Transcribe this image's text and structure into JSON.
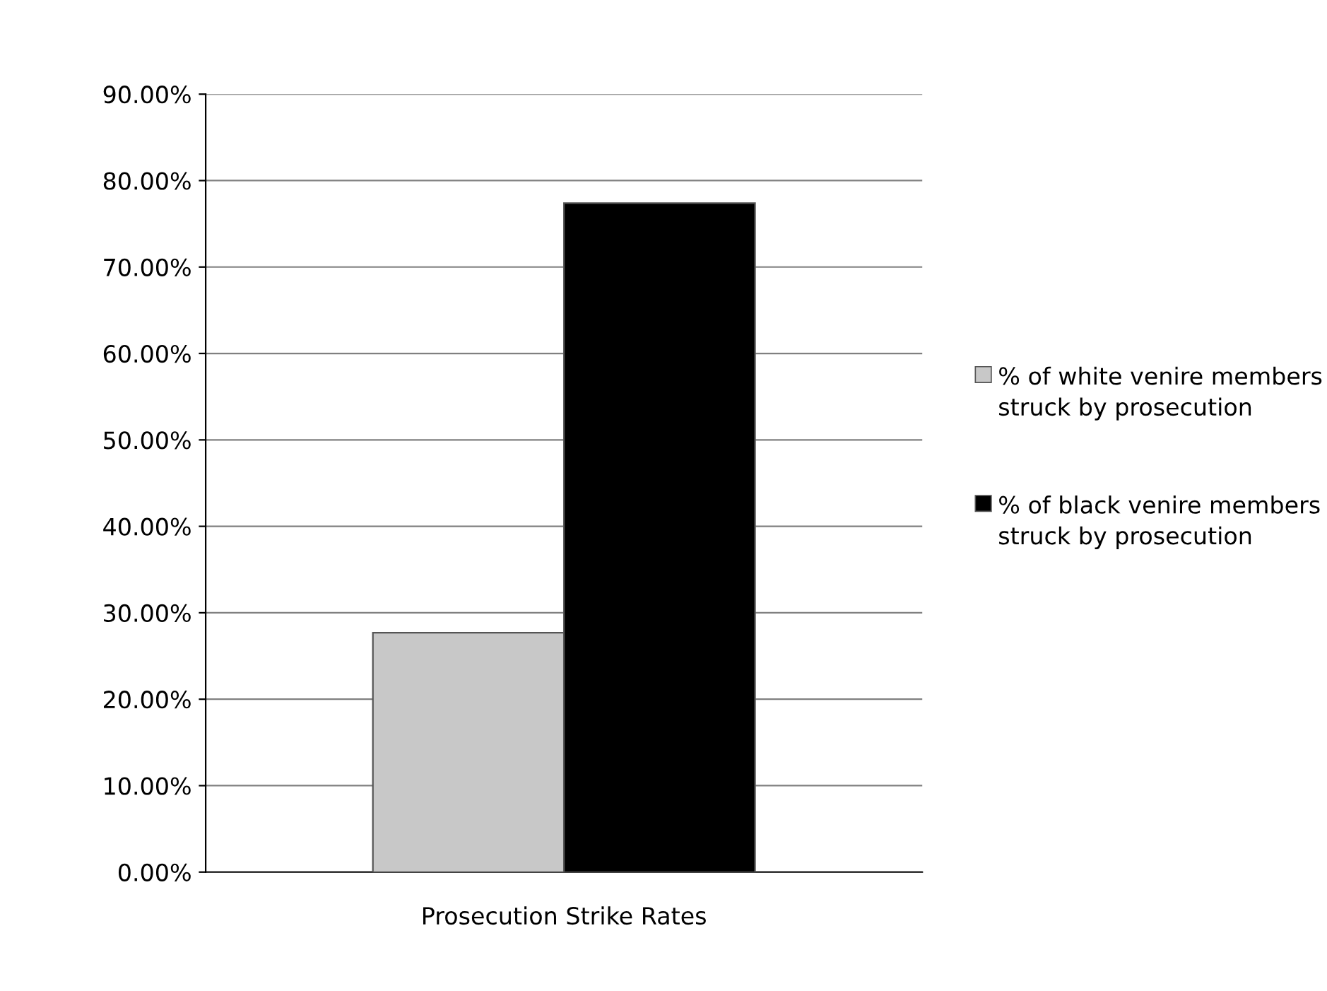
{
  "chart_data": {
    "type": "bar",
    "xlabel": "Prosecution Strike Rates",
    "categories": [
      null
    ],
    "series": [
      {
        "name": "% of white venire members struck by prosecution",
        "color": "#c8c8c8",
        "values": [
          27.7
        ]
      },
      {
        "name": "% of black venire members struck by prosecution",
        "color": "#000000",
        "values": [
          77.4
        ]
      }
    ],
    "ylim": [
      0,
      90
    ],
    "yticks": [
      {
        "value": 0,
        "label": "0.00%"
      },
      {
        "value": 10,
        "label": "10.00%"
      },
      {
        "value": 20,
        "label": "20.00%"
      },
      {
        "value": 30,
        "label": "30.00%"
      },
      {
        "value": 40,
        "label": "40.00%"
      },
      {
        "value": 50,
        "label": "50.00%"
      },
      {
        "value": 60,
        "label": "60.00%"
      },
      {
        "value": 70,
        "label": "70.00%"
      },
      {
        "value": 80,
        "label": "80.00%"
      },
      {
        "value": 90,
        "label": "90.00%"
      }
    ],
    "grid": "y",
    "legend": "right"
  }
}
